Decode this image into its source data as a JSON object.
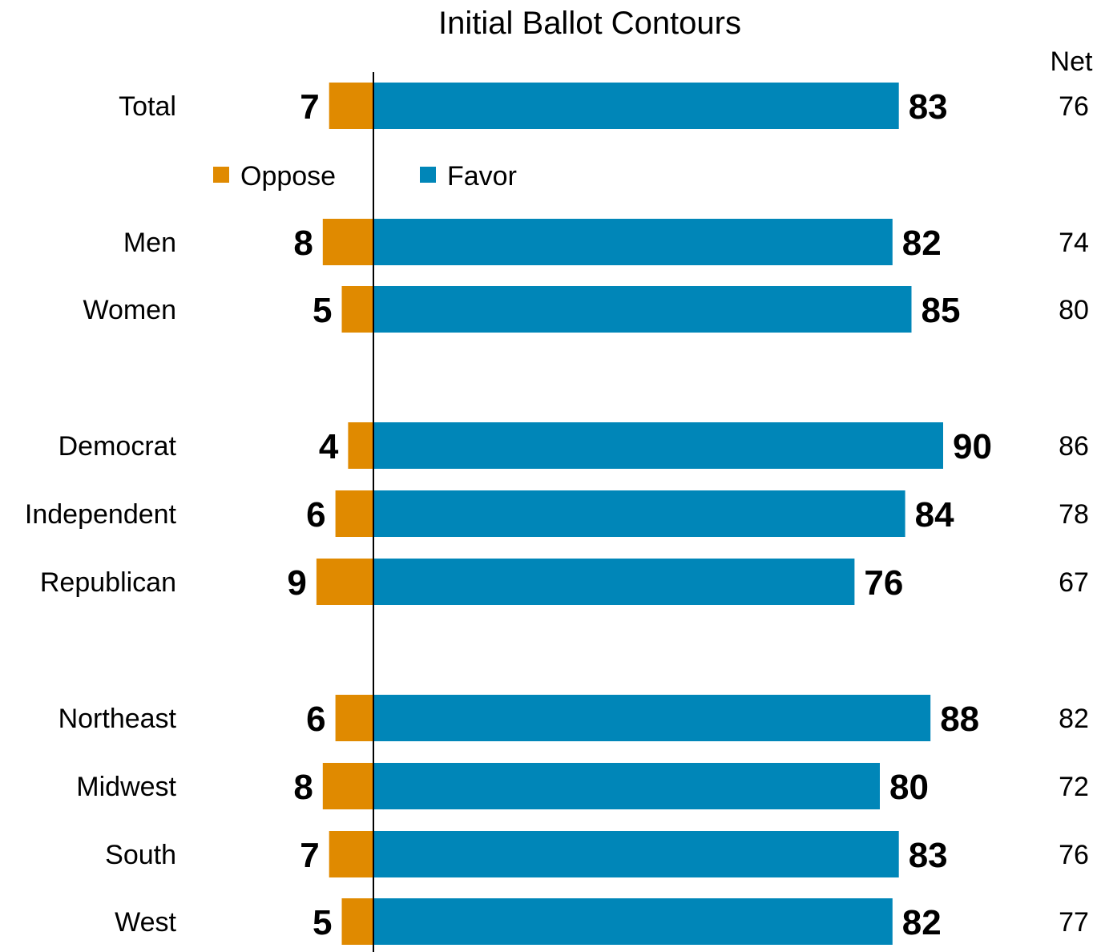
{
  "chart_data": {
    "type": "bar",
    "orientation": "horizontal-diverging",
    "title": "Initial Ballot Contours",
    "net_header": "Net",
    "categories": [
      "Total",
      "Men",
      "Women",
      "Democrat",
      "Independent",
      "Republican",
      "Northeast",
      "Midwest",
      "South",
      "West"
    ],
    "series": [
      {
        "name": "Oppose",
        "color": "#E08A00",
        "values": [
          7,
          8,
          5,
          4,
          6,
          9,
          6,
          8,
          7,
          5
        ]
      },
      {
        "name": "Favor",
        "color": "#0086B8",
        "values": [
          83,
          82,
          85,
          90,
          84,
          76,
          88,
          80,
          83,
          82
        ]
      }
    ],
    "net": [
      "76",
      "74",
      "80",
      "86",
      "78",
      "67",
      "82",
      "72",
      "76",
      "77"
    ],
    "legend_position": "top-left, below Total row"
  }
}
